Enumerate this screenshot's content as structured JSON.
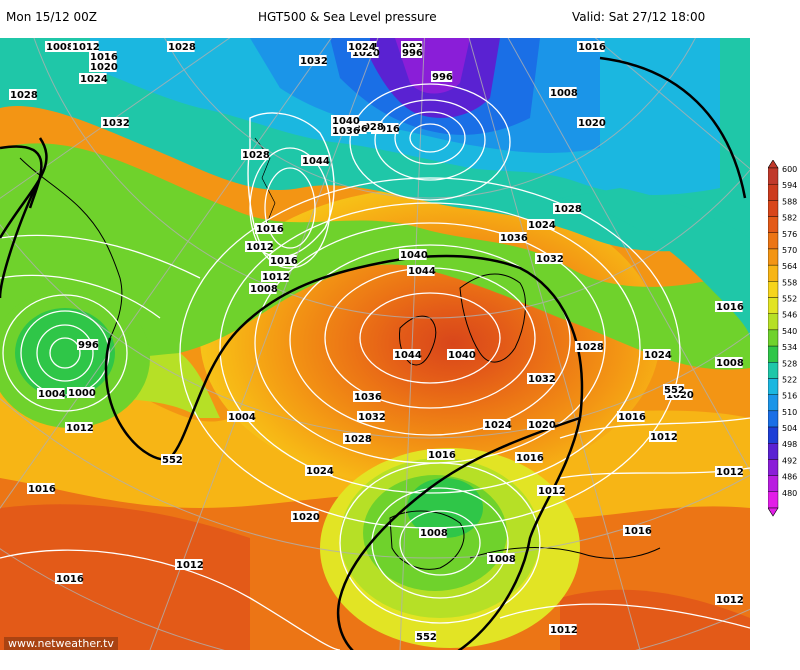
{
  "header": {
    "left": "Mon 15/12 00Z",
    "center": "HGT500 & Sea Level pressure",
    "right": "Valid: Sat 27/12 18:00"
  },
  "credit": "www.netweather.tv",
  "colorbar": {
    "levels": [
      {
        "value": "600",
        "color": "#c0392b"
      },
      {
        "value": "594",
        "color": "#cc3b1e"
      },
      {
        "value": "588",
        "color": "#d8461a"
      },
      {
        "value": "582",
        "color": "#e35a18"
      },
      {
        "value": "576",
        "color": "#ec7515"
      },
      {
        "value": "570",
        "color": "#f39514"
      },
      {
        "value": "564",
        "color": "#f7b515"
      },
      {
        "value": "558",
        "color": "#f6d41c"
      },
      {
        "value": "552",
        "color": "#e2e424"
      },
      {
        "value": "546",
        "color": "#b6e026"
      },
      {
        "value": "540",
        "color": "#6fd22c"
      },
      {
        "value": "534",
        "color": "#2fc648"
      },
      {
        "value": "528",
        "color": "#1fc7a8"
      },
      {
        "value": "522",
        "color": "#1bb7e0"
      },
      {
        "value": "516",
        "color": "#1b95e8"
      },
      {
        "value": "510",
        "color": "#1a6fe6"
      },
      {
        "value": "504",
        "color": "#1e3fd6"
      },
      {
        "value": "498",
        "color": "#5a22d2"
      },
      {
        "value": "492",
        "color": "#8a1ed8"
      },
      {
        "value": "486",
        "color": "#b81ee0"
      },
      {
        "value": "480",
        "color": "#e21ee8"
      }
    ]
  },
  "isobar_labels": [
    {
      "text": "1008"
    },
    {
      "text": "1012"
    },
    {
      "text": "1016"
    },
    {
      "text": "1020"
    },
    {
      "text": "1024"
    },
    {
      "text": "1028"
    },
    {
      "text": "1028"
    },
    {
      "text": "1032"
    },
    {
      "text": "1024"
    },
    {
      "text": "1020"
    },
    {
      "text": "992"
    },
    {
      "text": "996"
    },
    {
      "text": "996"
    },
    {
      "text": "1016"
    },
    {
      "text": "1024"
    },
    {
      "text": "1008"
    },
    {
      "text": "1028"
    },
    {
      "text": "1032"
    },
    {
      "text": "1036"
    },
    {
      "text": "1040"
    },
    {
      "text": "1044"
    },
    {
      "text": "1036"
    },
    {
      "text": "1028"
    },
    {
      "text": "1016"
    },
    {
      "text": "1012"
    },
    {
      "text": "1040"
    },
    {
      "text": "1044"
    },
    {
      "text": "1044"
    },
    {
      "text": "1040"
    },
    {
      "text": "1036"
    },
    {
      "text": "1032"
    },
    {
      "text": "1028"
    },
    {
      "text": "1024"
    },
    {
      "text": "1020"
    },
    {
      "text": "1016"
    },
    {
      "text": "1012"
    },
    {
      "text": "1008"
    },
    {
      "text": "1004"
    },
    {
      "text": "1000"
    },
    {
      "text": "996"
    },
    {
      "text": "1004"
    },
    {
      "text": "1012"
    },
    {
      "text": "1016"
    },
    {
      "text": "1016"
    },
    {
      "text": "1012"
    },
    {
      "text": "1008"
    },
    {
      "text": "1024"
    },
    {
      "text": "1020"
    },
    {
      "text": "1016"
    },
    {
      "text": "1012"
    },
    {
      "text": "1016"
    },
    {
      "text": "1008"
    },
    {
      "text": "1012"
    },
    {
      "text": "1032"
    },
    {
      "text": "1028"
    },
    {
      "text": "1036"
    },
    {
      "text": "1032"
    },
    {
      "text": "1028"
    },
    {
      "text": "1024"
    },
    {
      "text": "1020"
    },
    {
      "text": "1016"
    },
    {
      "text": "1012"
    },
    {
      "text": "1016"
    },
    {
      "text": "1016"
    },
    {
      "text": "1012"
    },
    {
      "text": "1016"
    },
    {
      "text": "1008"
    },
    {
      "text": "1012"
    },
    {
      "text": "1024"
    },
    {
      "text": "1020"
    }
  ],
  "height_labels": [
    {
      "text": "552"
    },
    {
      "text": "552"
    },
    {
      "text": "552"
    }
  ]
}
